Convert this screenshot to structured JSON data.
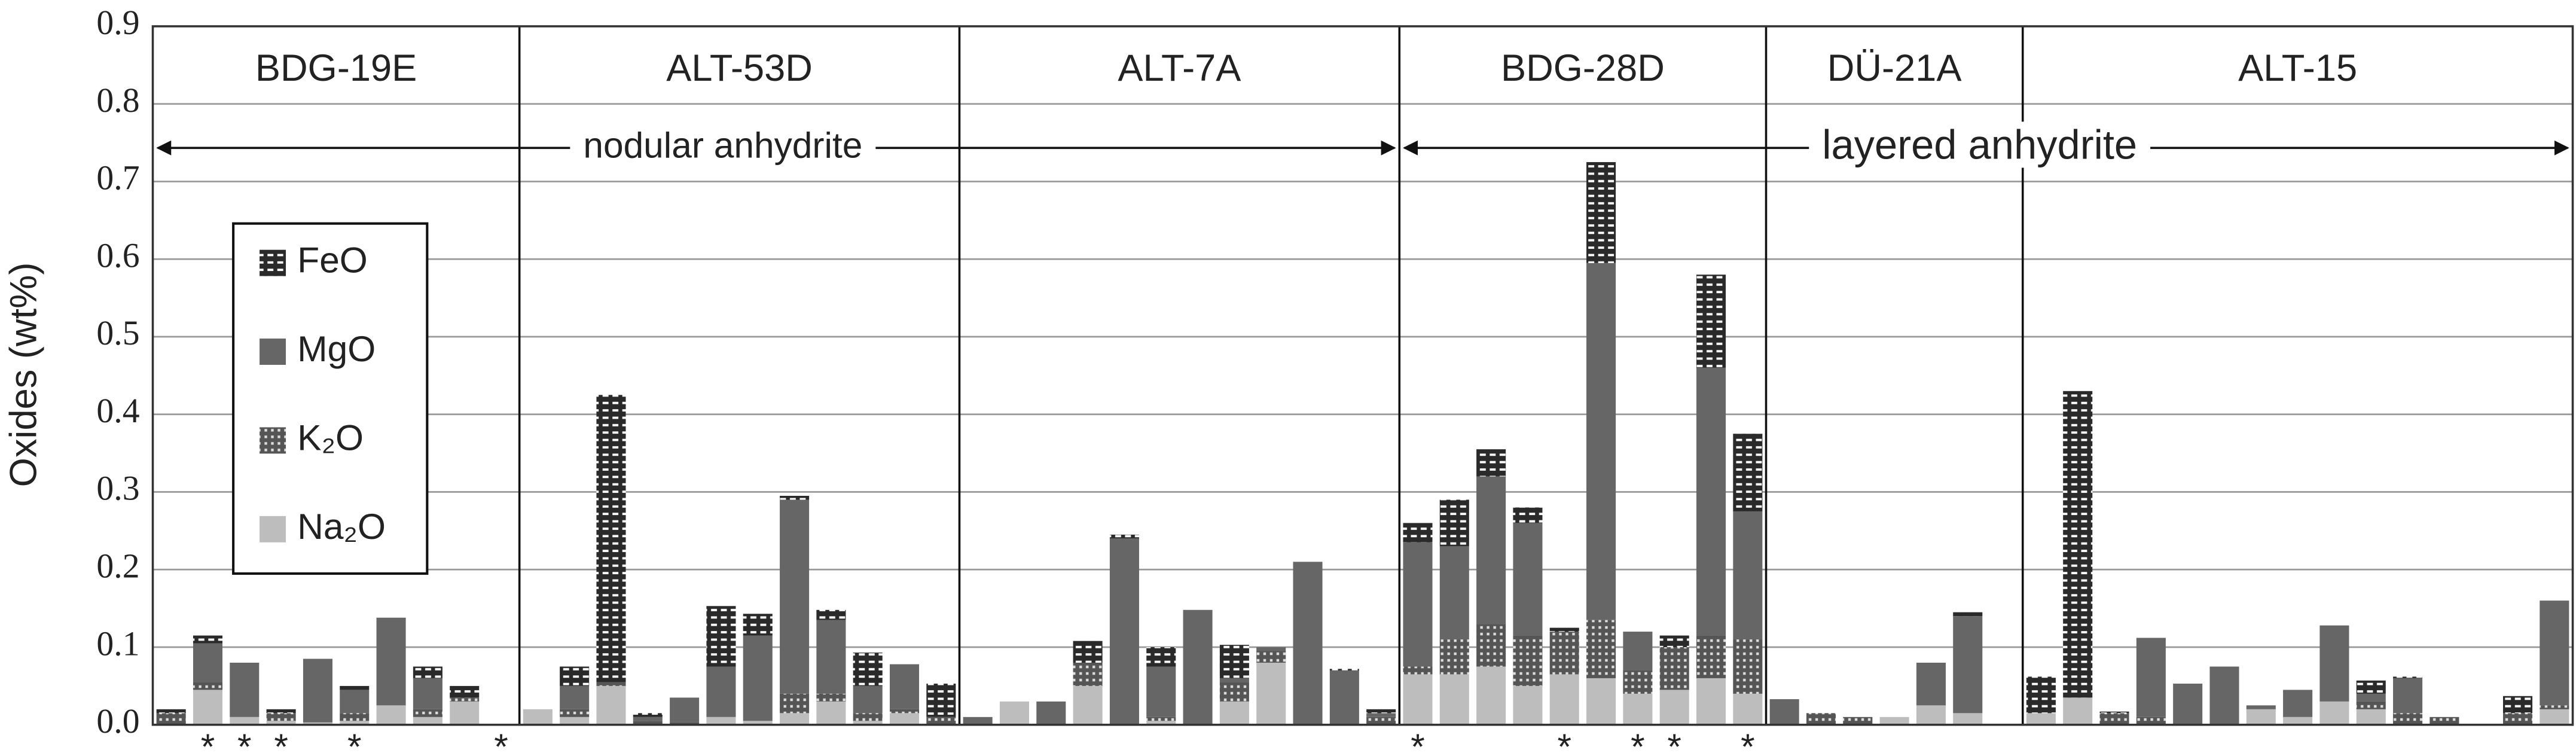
{
  "chart_data": {
    "type": "stacked_bar",
    "y_label": "Oxides (wt%)",
    "ylim": [
      0,
      0.9
    ],
    "yticks": [
      {
        "value": 0,
        "label": "0.0"
      },
      0.1,
      0.2,
      0.3,
      0.4,
      0.5,
      0.6,
      0.7,
      0.8,
      0.9
    ],
    "grid": true,
    "legend": "upper left",
    "groups": [
      {
        "label": "BDG-19E",
        "size": 10
      },
      {
        "label": "ALT-53D",
        "size": 12
      },
      {
        "label": "ALT-7A",
        "size": 12
      },
      {
        "label": "BDG-28D",
        "size": 10
      },
      {
        "label": "DÜ-21A",
        "size": 7
      },
      {
        "label": "ALT-15",
        "size": 15
      }
    ],
    "annotations": [
      "nodular anhydrite",
      "layered anhydrite"
    ],
    "categories": [
      null,
      "*",
      "*",
      "*",
      null,
      "*",
      null,
      null,
      null,
      "*",
      null,
      null,
      null,
      null,
      null,
      null,
      null,
      null,
      null,
      null,
      null,
      null,
      null,
      null,
      null,
      null,
      null,
      null,
      null,
      null,
      null,
      null,
      null,
      null,
      "*",
      null,
      null,
      null,
      "*",
      null,
      "*",
      "*",
      null,
      "*",
      null,
      null,
      null,
      null,
      null,
      null,
      null,
      null,
      null,
      null,
      null,
      null,
      null,
      null,
      null,
      null,
      null,
      null,
      null,
      null,
      null,
      null
    ],
    "series": [
      {
        "name": "Na₂O",
        "color": "#bdbdbd",
        "pattern": "solid",
        "values": [
          0,
          0.045,
          0.01,
          0.005,
          0.003,
          0.005,
          0.025,
          0.01,
          0.03,
          0,
          0.02,
          0.01,
          0.05,
          0,
          0,
          0.01,
          0.005,
          0.015,
          0.03,
          0.005,
          0.015,
          0,
          0,
          0.03,
          0,
          0.05,
          0,
          0.005,
          0,
          0.03,
          0.08,
          0,
          0,
          0,
          0.065,
          0.065,
          0.075,
          0.05,
          0.065,
          0.06,
          0.04,
          0.045,
          0.06,
          0.04,
          0,
          0,
          0,
          0.01,
          0.025,
          0.015,
          0,
          0.015,
          0.035,
          0,
          0,
          0,
          0,
          0.02,
          0.01,
          0.03,
          0.02,
          0,
          0,
          0,
          0,
          0.02
        ]
      },
      {
        "name": "K₂O",
        "color": "#555555",
        "pattern": "dots",
        "values": [
          0.015,
          0.01,
          0,
          0.01,
          0,
          0.01,
          0,
          0.01,
          0.005,
          0,
          0,
          0.01,
          0.005,
          0.005,
          0.003,
          0,
          0,
          0.025,
          0.01,
          0.01,
          0.005,
          0.01,
          0,
          0,
          0,
          0.03,
          0,
          0.005,
          0,
          0.025,
          0.015,
          0,
          0,
          0.01,
          0.01,
          0.045,
          0.055,
          0.065,
          0.055,
          0.075,
          0.03,
          0.055,
          0.055,
          0.07,
          0,
          0.015,
          0.01,
          0,
          0,
          0,
          0,
          0,
          0,
          0.015,
          0.01,
          0,
          0,
          0,
          0,
          0,
          0.01,
          0.015,
          0.01,
          0,
          0.015,
          0.005
        ]
      },
      {
        "name": "MgO",
        "color": "#666666",
        "pattern": "solid",
        "values": [
          0,
          0.05,
          0.07,
          0,
          0.082,
          0.03,
          0.113,
          0.04,
          0,
          0,
          0,
          0.03,
          0,
          0.005,
          0.032,
          0.065,
          0.11,
          0.25,
          0.095,
          0.035,
          0.058,
          0,
          0.01,
          0,
          0.03,
          0,
          0.24,
          0.065,
          0.148,
          0.005,
          0.005,
          0.21,
          0.07,
          0.005,
          0.16,
          0.12,
          0.19,
          0.145,
          0,
          0.46,
          0.05,
          0,
          0.345,
          0.165,
          0.033,
          0,
          0,
          0,
          0.055,
          0.125,
          0,
          0,
          0,
          0,
          0.102,
          0.053,
          0.075,
          0.005,
          0.035,
          0.098,
          0.01,
          0.045,
          0,
          0,
          0,
          0.135
        ]
      },
      {
        "name": "FeO",
        "color": "#333333",
        "pattern": "dashes",
        "values": [
          0.005,
          0.01,
          0,
          0.005,
          0,
          0.005,
          0,
          0.015,
          0.015,
          0,
          0,
          0.025,
          0.37,
          0.005,
          0,
          0.078,
          0.028,
          0.005,
          0.013,
          0.043,
          0,
          0.043,
          0,
          0,
          0,
          0.028,
          0.005,
          0.025,
          0,
          0.043,
          0,
          0,
          0.002,
          0.005,
          0.025,
          0.06,
          0.035,
          0.02,
          0.005,
          0.13,
          0,
          0.015,
          0.12,
          0.1,
          0,
          0,
          0,
          0,
          0,
          0.005,
          0,
          0.047,
          0.395,
          0.002,
          0,
          0,
          0,
          0,
          0,
          0,
          0.017,
          0.002,
          0,
          0,
          0.022,
          0
        ]
      }
    ]
  }
}
